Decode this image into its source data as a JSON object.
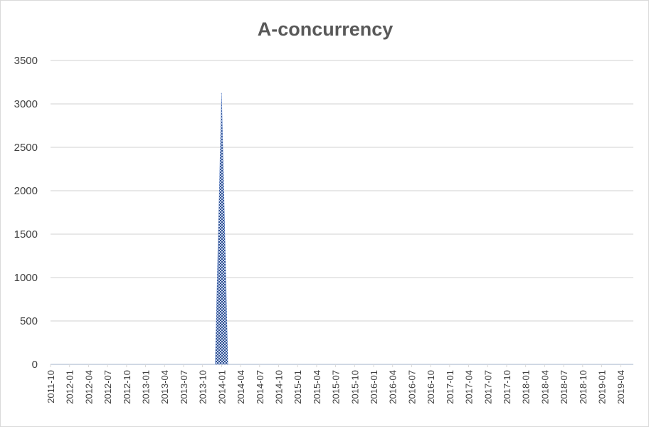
{
  "chart_data": {
    "type": "area",
    "title": "A-concurrency",
    "xlabel": "",
    "ylabel": "",
    "ylim": [
      0,
      3500
    ],
    "yticks": [
      0,
      500,
      1000,
      1500,
      2000,
      2500,
      3000,
      3500
    ],
    "x_tick_labels": [
      "2011-10",
      "2012-01",
      "2012-04",
      "2012-07",
      "2012-10",
      "2013-01",
      "2013-04",
      "2013-07",
      "2013-10",
      "2014-01",
      "2014-04",
      "2014-07",
      "2014-10",
      "2015-01",
      "2015-04",
      "2015-07",
      "2015-10",
      "2016-01",
      "2016-04",
      "2016-07",
      "2016-10",
      "2017-01",
      "2017-04",
      "2017-07",
      "2017-10",
      "2018-01",
      "2018-04",
      "2018-07",
      "2018-10",
      "2019-01",
      "2019-04"
    ],
    "x_range": [
      "2011-10",
      "2019-06"
    ],
    "grid": true,
    "legend": "none",
    "series": [
      {
        "color": "#4472c4",
        "fill": "hatched",
        "points": [
          {
            "x": "2011-10",
            "y": 0
          },
          {
            "x": "2013-12",
            "y": 0
          },
          {
            "x": "2014-01",
            "y": 3120
          },
          {
            "x": "2014-02",
            "y": 0
          },
          {
            "x": "2019-06",
            "y": 0
          }
        ]
      }
    ]
  }
}
